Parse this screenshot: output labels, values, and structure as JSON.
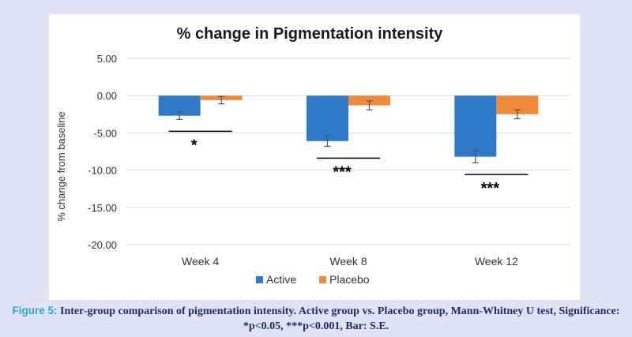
{
  "colors": {
    "page_background": "#dfe3f5",
    "card_background": "#ffffff",
    "active": "#2f79c9",
    "placebo": "#ef8a3a",
    "caption_text": "#1f2a6b",
    "caption_label": "#2aa4d6"
  },
  "chart_data": {
    "type": "bar",
    "title": "% change in Pigmentation intensity",
    "xlabel": "",
    "ylabel": "% change from baseline",
    "ylim": [
      -20,
      5
    ],
    "yticks": [
      5,
      0,
      -5,
      -10,
      -15,
      -20
    ],
    "ytick_labels": [
      "5.00",
      "0.00",
      "-5.00",
      "-10.00",
      "-15.00",
      "-20.00"
    ],
    "grid": true,
    "legend_position": "bottom-center",
    "categories": [
      "Week 4",
      "Week 8",
      "Week 12"
    ],
    "series": [
      {
        "name": "Active",
        "values": [
          -2.7,
          -6.1,
          -8.2
        ],
        "errors": [
          0.5,
          0.7,
          0.8
        ]
      },
      {
        "name": "Placebo",
        "values": [
          -0.6,
          -1.3,
          -2.5
        ],
        "errors": [
          0.5,
          0.6,
          0.6
        ]
      }
    ],
    "significance": [
      {
        "category": "Week 4",
        "label": "*"
      },
      {
        "category": "Week 8",
        "label": "***"
      },
      {
        "category": "Week 12",
        "label": "***"
      }
    ]
  },
  "caption": {
    "label": "Figure 5:",
    "text": "Inter-group comparison of pigmentation intensity. Active group vs. Placebo group, Mann-Whitney U test, Significance: *p<0.05, ***p<0.001, Bar: S.E."
  }
}
